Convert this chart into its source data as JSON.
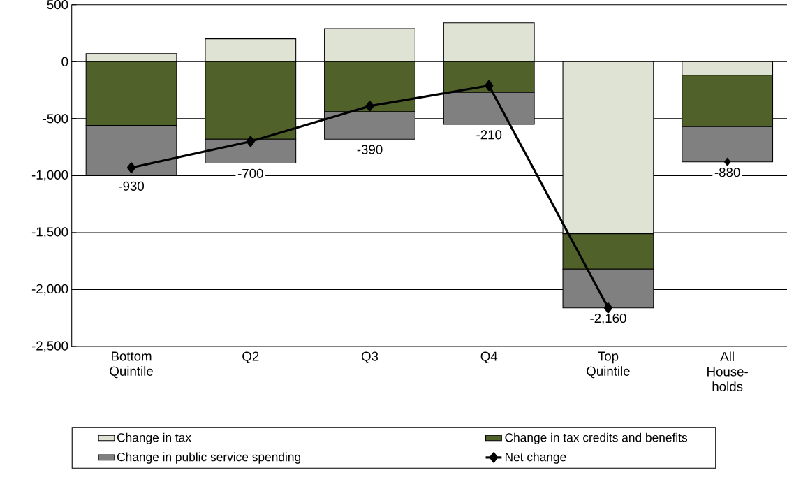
{
  "chart_data": {
    "type": "bar",
    "stacked": true,
    "categories": [
      "Bottom Quintile",
      "Q2",
      "Q3",
      "Q4",
      "Top Quintile",
      "All House-holds"
    ],
    "series": [
      {
        "name": "Change in tax",
        "color": "#dfe3d4",
        "values": [
          70,
          200,
          290,
          340,
          -1510,
          -120
        ]
      },
      {
        "name": "Change in tax credits and benefits",
        "color": "#50622a",
        "values": [
          -560,
          -680,
          -440,
          -270,
          -310,
          -450
        ]
      },
      {
        "name": "Change in public service spending",
        "color": "#808080",
        "values": [
          -440,
          -210,
          -240,
          -280,
          -340,
          -310
        ]
      },
      {
        "name": "Net change",
        "type": "line",
        "color": "#000000",
        "values": [
          -930,
          -700,
          -390,
          -210,
          -2160,
          null
        ],
        "value_labels": [
          "-930",
          "-700",
          "-390",
          "-210",
          "-2,160",
          null
        ]
      },
      {
        "type": "scatter",
        "color": "#000000",
        "values": [
          null,
          null,
          null,
          null,
          null,
          -880
        ],
        "value_labels": [
          null,
          null,
          null,
          null,
          null,
          "-880"
        ]
      }
    ],
    "marker": "diamond",
    "ylim": [
      -2500,
      500
    ],
    "yticks": [
      500,
      0,
      {
        "value": -500,
        "label": "-500"
      },
      {
        "value": -1000,
        "label": "-1,000"
      },
      {
        "value": -1500,
        "label": "-1,500"
      },
      {
        "value": -2000,
        "label": "-2,000"
      },
      {
        "value": -2500,
        "label": "-2,500"
      }
    ],
    "grid": "y",
    "legend": "bottom"
  }
}
